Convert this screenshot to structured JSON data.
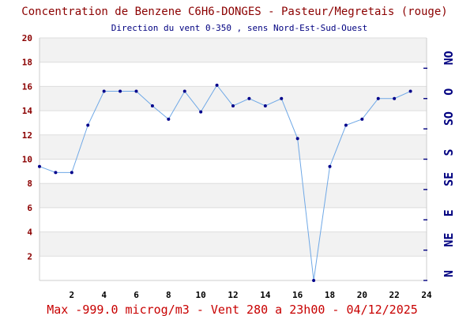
{
  "colors": {
    "line": "#6fa8e6",
    "point": "#00008b",
    "band": "#f2f2f2",
    "title": "#8b0000",
    "subtitle": "#000080",
    "footer": "#c80000",
    "direction": "#000080"
  },
  "chart_data": {
    "type": "line",
    "title": "Concentration de Benzene C6H6-DONGES - Pasteur/Megretais (rouge)",
    "subtitle": "Direction du vent 0-350 , sens Nord-Est-Sud-Ouest",
    "footer": "Max -999.0 microg/m3 - Vent 280  a 23h00 - 04/12/2025",
    "x_ticks": [
      "2",
      "4",
      "6",
      "8",
      "10",
      "12",
      "14",
      "16",
      "18",
      "20",
      "22",
      "24"
    ],
    "y_ticks": [
      "2",
      "4",
      "6",
      "8",
      "10",
      "12",
      "14",
      "16",
      "18",
      "20"
    ],
    "direction_ticks": [
      "N",
      "NE",
      "E",
      "SE",
      "S",
      "SO",
      "O",
      "NO"
    ],
    "xlim": [
      0,
      24
    ],
    "ylim": [
      0,
      20
    ],
    "grid": "alternating horizontal bands",
    "series": [
      {
        "x": [
          0,
          1,
          2,
          3,
          4,
          5,
          6,
          7,
          8,
          9,
          10,
          11,
          12,
          13,
          14,
          15,
          16,
          17,
          18,
          19,
          20,
          21,
          22,
          23
        ],
        "values": [
          9.4,
          8.9,
          8.9,
          12.8,
          15.6,
          15.6,
          15.6,
          14.4,
          13.3,
          15.6,
          13.9,
          16.1,
          14.4,
          15.0,
          14.4,
          15.0,
          11.7,
          0.0,
          9.4,
          12.8,
          13.3,
          15.0,
          15.0,
          15.6
        ]
      }
    ]
  }
}
